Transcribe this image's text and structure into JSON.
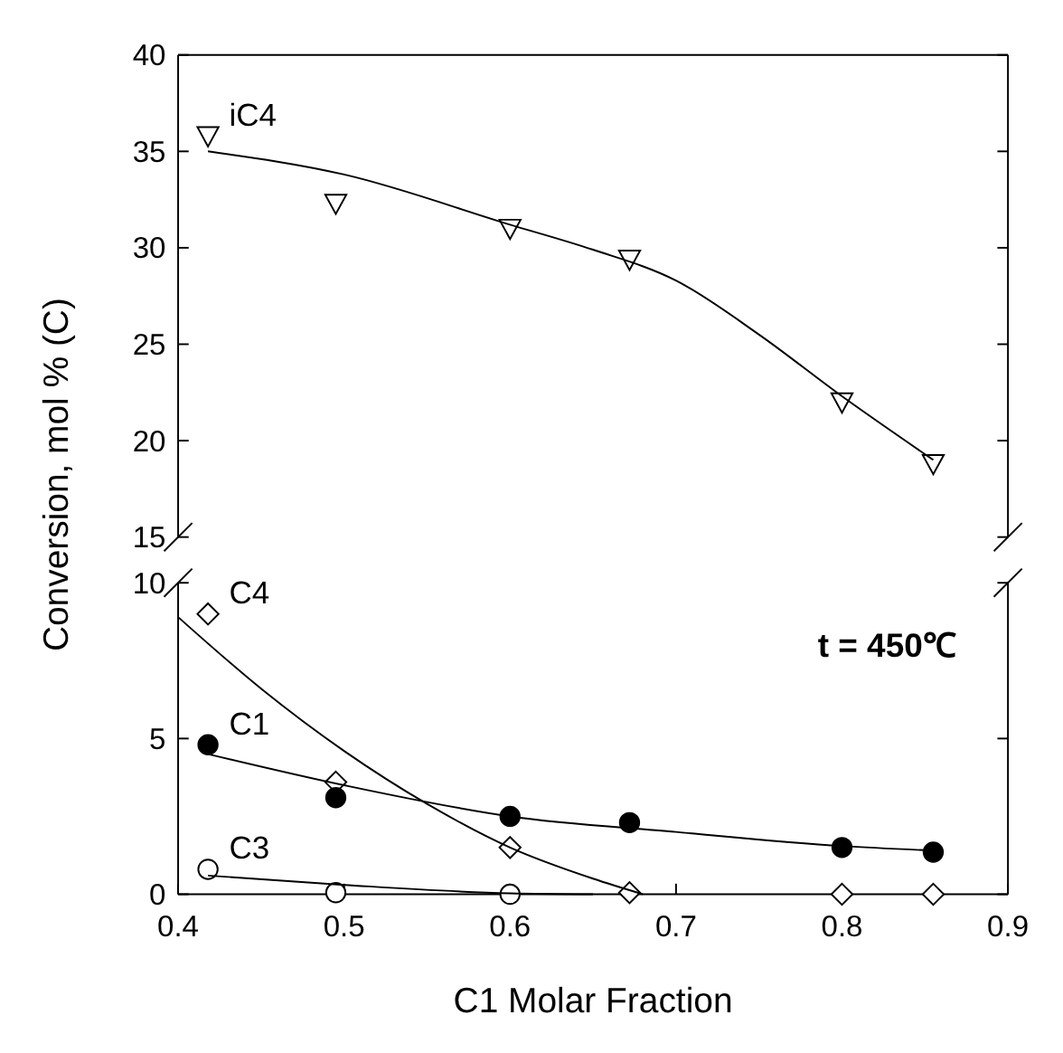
{
  "chart_data": [
    {
      "type": "scatter",
      "ylabel": "Conversion, mol % (C)",
      "x": [
        0.418,
        0.495,
        0.6,
        0.672,
        0.8,
        0.855
      ],
      "xlim": [
        0.4,
        0.9
      ],
      "ylim": [
        15,
        40
      ],
      "yticks": [
        15,
        20,
        25,
        30,
        35,
        40
      ],
      "tick_labels": "y",
      "series": [
        {
          "name": "iC4",
          "marker": "triangle",
          "color": "#ffffff",
          "values": [
            35.8,
            32.3,
            31.0,
            29.4,
            22.0,
            18.8
          ]
        },
        {
          "type": "line",
          "marker": "none",
          "color": "#000000",
          "x": [
            0.418,
            0.5,
            0.6,
            0.65,
            0.7,
            0.75,
            0.8,
            0.855
          ],
          "values": [
            35.0,
            33.8,
            31.2,
            29.9,
            28.3,
            25.5,
            22.3,
            19.0
          ]
        }
      ]
    },
    {
      "type": "scatter",
      "xlabel": "C1 Molar Fraction",
      "x": [
        0.418,
        0.495,
        0.6,
        0.672,
        0.8,
        0.855
      ],
      "xlim": [
        0.4,
        0.9
      ],
      "xticks": [
        0.4,
        0.5,
        0.6,
        0.7,
        0.8,
        0.9
      ],
      "ylim": [
        0,
        10
      ],
      "yticks": [
        0,
        5,
        10
      ],
      "annotations": [
        "t = 450℃"
      ],
      "series": [
        {
          "name": "C4",
          "marker": "diamond",
          "color": "#ffffff",
          "values": [
            9.0,
            3.6,
            1.5,
            0.05,
            0,
            0
          ]
        },
        {
          "type": "line",
          "marker": "none",
          "color": "#000000",
          "x": [
            0.4,
            0.45,
            0.5,
            0.55,
            0.6,
            0.65,
            0.68
          ],
          "values": [
            8.9,
            6.6,
            4.6,
            2.9,
            1.5,
            0.5,
            0
          ]
        },
        {
          "name": "C1",
          "marker": "circle",
          "color": "#000000",
          "values": [
            4.8,
            3.1,
            2.5,
            2.3,
            1.5,
            1.35
          ]
        },
        {
          "type": "line",
          "marker": "none",
          "color": "#000000",
          "x": [
            0.418,
            0.5,
            0.6,
            0.7,
            0.8,
            0.855
          ],
          "values": [
            4.5,
            3.5,
            2.5,
            2.0,
            1.55,
            1.4
          ]
        },
        {
          "name": "C3",
          "marker": "circle",
          "color": "#ffffff",
          "x": [
            0.418,
            0.495,
            0.6
          ],
          "values": [
            0.8,
            0.05,
            0
          ]
        },
        {
          "type": "line",
          "marker": "none",
          "color": "#000000",
          "x": [
            0.418,
            0.5,
            0.6,
            0.65
          ],
          "values": [
            0.6,
            0.3,
            0.03,
            0
          ]
        }
      ]
    }
  ]
}
